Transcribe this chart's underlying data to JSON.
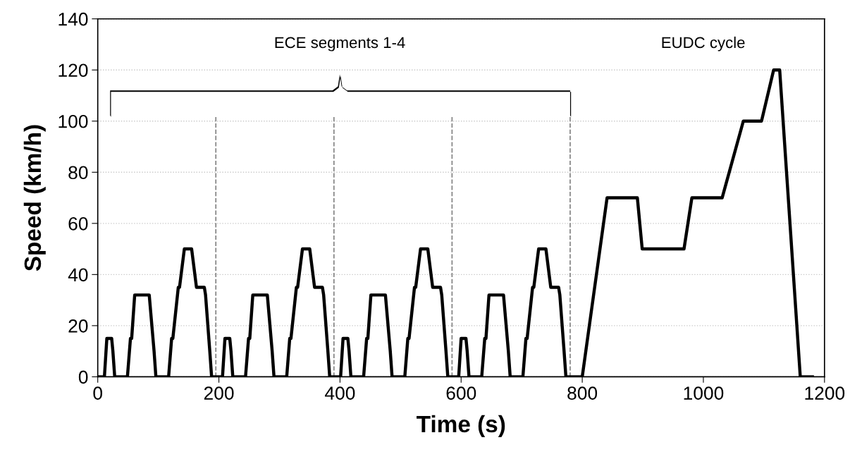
{
  "chart_data": {
    "type": "line",
    "xlabel": "Time (s)",
    "ylabel": "Speed (km/h)",
    "xlim": [
      0,
      1200
    ],
    "xticks": [
      0,
      200,
      400,
      600,
      800,
      1000,
      1200
    ],
    "ylim": [
      0,
      140
    ],
    "yticks": [
      0,
      20,
      40,
      60,
      80,
      100,
      120,
      140
    ],
    "grid": "y",
    "legend": false,
    "marker": "none",
    "line_style": "solid",
    "series": [
      {
        "color": "#000000",
        "x": [
          0,
          11,
          15,
          23,
          25,
          28,
          49,
          54,
          56,
          61,
          85,
          93,
          96,
          117,
          122,
          124,
          133,
          135,
          143,
          155,
          163,
          176,
          178,
          185,
          188,
          195,
          206,
          210,
          218,
          220,
          223,
          244,
          249,
          251,
          256,
          280,
          288,
          291,
          312,
          317,
          319,
          328,
          330,
          338,
          350,
          358,
          371,
          373,
          380,
          383,
          390,
          401,
          405,
          413,
          415,
          418,
          439,
          444,
          446,
          451,
          475,
          483,
          486,
          507,
          512,
          514,
          523,
          525,
          533,
          545,
          553,
          566,
          568,
          575,
          578,
          585,
          596,
          600,
          608,
          610,
          613,
          634,
          639,
          641,
          646,
          670,
          678,
          681,
          702,
          707,
          709,
          718,
          720,
          728,
          740,
          748,
          761,
          763,
          770,
          773,
          780,
          800,
          841,
          891,
          899,
          968,
          981,
          1031,
          1066,
          1096,
          1116,
          1126,
          1160,
          1180
        ],
        "values": [
          0,
          0,
          15,
          15,
          10,
          0,
          0,
          15,
          15,
          32,
          32,
          10,
          0,
          0,
          15,
          15,
          35,
          35,
          50,
          50,
          35,
          35,
          32,
          10,
          0,
          0,
          0,
          15,
          15,
          10,
          0,
          0,
          15,
          15,
          32,
          32,
          10,
          0,
          0,
          15,
          15,
          35,
          35,
          50,
          50,
          35,
          35,
          32,
          10,
          0,
          0,
          0,
          15,
          15,
          10,
          0,
          0,
          15,
          15,
          32,
          32,
          10,
          0,
          0,
          15,
          15,
          35,
          35,
          50,
          50,
          35,
          35,
          32,
          10,
          0,
          0,
          0,
          15,
          15,
          10,
          0,
          0,
          15,
          15,
          32,
          32,
          10,
          0,
          0,
          15,
          15,
          35,
          35,
          50,
          50,
          35,
          35,
          32,
          10,
          0,
          0,
          0,
          70,
          70,
          50,
          50,
          70,
          70,
          100,
          100,
          120,
          120,
          0,
          0
        ]
      }
    ],
    "ref_lines": [
      {
        "axis": "x",
        "value": 195,
        "color": "#808080",
        "line_style": "dashed"
      },
      {
        "axis": "x",
        "value": 390,
        "color": "#808080",
        "line_style": "dashed"
      },
      {
        "axis": "x",
        "value": 585,
        "color": "#808080",
        "line_style": "dashed"
      },
      {
        "axis": "x",
        "value": 780,
        "color": "#808080",
        "line_style": "dashed"
      }
    ],
    "annotations": [
      "ECE segments 1-4",
      "EUDC cycle"
    ]
  }
}
